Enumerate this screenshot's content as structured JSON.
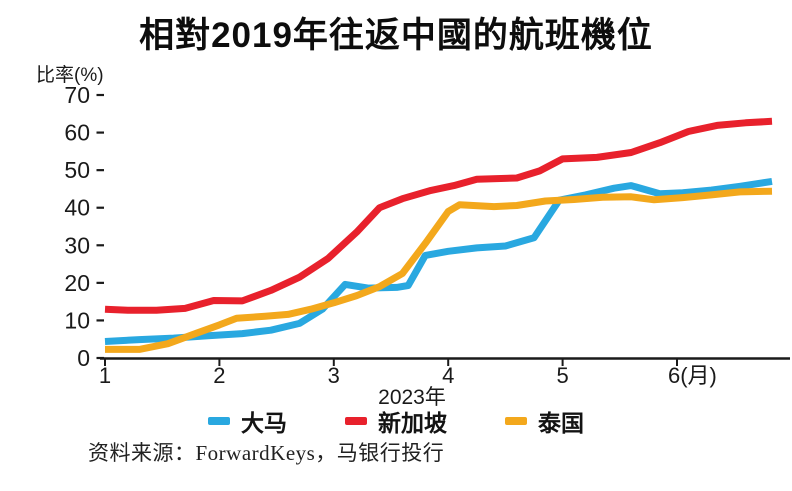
{
  "header": {
    "title": "相對2019年往返中國的航班機位"
  },
  "footer": {
    "source": "资料来源：ForwardKeys，马银行投行"
  },
  "chart_data": {
    "type": "line",
    "title": "相對2019年往返中國的航班機位",
    "xlabel": "2023年",
    "ylabel": "比率(%)",
    "x_axis": {
      "ticks": [
        1,
        2,
        3,
        4,
        5,
        6
      ],
      "tick_labels": [
        "1",
        "2",
        "3",
        "4",
        "5",
        "6(月)"
      ],
      "range": [
        1,
        6.99
      ],
      "unit": "月"
    },
    "y_axis": {
      "ticks": [
        0,
        10,
        20,
        30,
        40,
        50,
        60,
        70
      ],
      "range": [
        0,
        70
      ],
      "unit": "%"
    },
    "grid": false,
    "legend_position": "bottom",
    "series": [
      {
        "name": "大马",
        "color": "#29a8e0",
        "points": [
          [
            1.0,
            4.4
          ],
          [
            1.3,
            4.9
          ],
          [
            1.6,
            5.3
          ],
          [
            1.9,
            5.9
          ],
          [
            2.2,
            6.5
          ],
          [
            2.45,
            7.4
          ],
          [
            2.7,
            9.2
          ],
          [
            2.9,
            13
          ],
          [
            3.1,
            19.6
          ],
          [
            3.3,
            18.6
          ],
          [
            3.55,
            18.8
          ],
          [
            3.65,
            19.3
          ],
          [
            3.8,
            27.3
          ],
          [
            4.0,
            28.4
          ],
          [
            4.25,
            29.3
          ],
          [
            4.5,
            29.8
          ],
          [
            4.75,
            32
          ],
          [
            4.97,
            42
          ],
          [
            5.2,
            43.4
          ],
          [
            5.45,
            45.2
          ],
          [
            5.6,
            45.9
          ],
          [
            5.85,
            43.7
          ],
          [
            6.05,
            44
          ],
          [
            6.3,
            44.7
          ],
          [
            6.55,
            45.7
          ],
          [
            6.83,
            47
          ]
        ]
      },
      {
        "name": "新加坡",
        "color": "#e8212c",
        "points": [
          [
            1.0,
            13
          ],
          [
            1.2,
            12.7
          ],
          [
            1.45,
            12.7
          ],
          [
            1.7,
            13.2
          ],
          [
            1.95,
            15.3
          ],
          [
            2.2,
            15.2
          ],
          [
            2.45,
            18
          ],
          [
            2.7,
            21.5
          ],
          [
            2.95,
            26.5
          ],
          [
            3.2,
            33.5
          ],
          [
            3.4,
            40
          ],
          [
            3.6,
            42.4
          ],
          [
            3.85,
            44.6
          ],
          [
            4.05,
            45.9
          ],
          [
            4.25,
            47.6
          ],
          [
            4.6,
            47.9
          ],
          [
            4.8,
            49.8
          ],
          [
            5.0,
            53
          ],
          [
            5.3,
            53.4
          ],
          [
            5.6,
            54.7
          ],
          [
            5.85,
            57.3
          ],
          [
            6.1,
            60.3
          ],
          [
            6.35,
            61.9
          ],
          [
            6.6,
            62.6
          ],
          [
            6.83,
            63
          ]
        ]
      },
      {
        "name": "泰国",
        "color": "#f3a81c",
        "points": [
          [
            1.0,
            2.3
          ],
          [
            1.3,
            2.3
          ],
          [
            1.55,
            3.8
          ],
          [
            1.8,
            6.6
          ],
          [
            2.0,
            8.8
          ],
          [
            2.15,
            10.6
          ],
          [
            2.4,
            11.1
          ],
          [
            2.6,
            11.6
          ],
          [
            2.8,
            13
          ],
          [
            3.0,
            14.7
          ],
          [
            3.2,
            16.6
          ],
          [
            3.4,
            19
          ],
          [
            3.6,
            22.5
          ],
          [
            3.8,
            30.5
          ],
          [
            4.0,
            39
          ],
          [
            4.1,
            40.8
          ],
          [
            4.4,
            40.3
          ],
          [
            4.6,
            40.6
          ],
          [
            4.85,
            41.8
          ],
          [
            5.1,
            42.2
          ],
          [
            5.35,
            42.8
          ],
          [
            5.6,
            42.9
          ],
          [
            5.8,
            42.1
          ],
          [
            6.05,
            42.7
          ],
          [
            6.3,
            43.4
          ],
          [
            6.55,
            44.2
          ],
          [
            6.83,
            44.4
          ]
        ]
      }
    ]
  },
  "legend": {
    "items": [
      {
        "label": "大马"
      },
      {
        "label": "新加坡"
      },
      {
        "label": "泰国"
      }
    ]
  }
}
